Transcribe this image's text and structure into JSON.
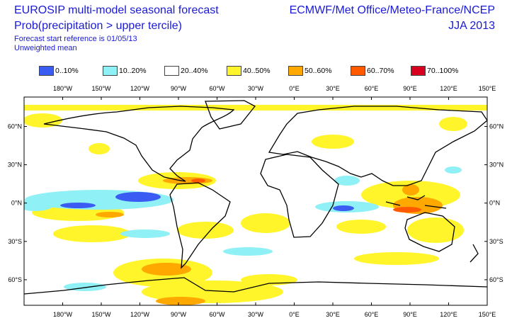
{
  "header": {
    "title": "EUROSIP multi-model seasonal forecast",
    "subtitle": "Prob(precipitation > upper tercile)",
    "reference": "Forecast start reference is 01/05/13",
    "mean": "Unweighted mean",
    "source": "ECMWF/Met Office/Meteo-France/NCEP",
    "season": "JJA 2013"
  },
  "legend": [
    {
      "label": "0..10%",
      "color": "#3a5cf2"
    },
    {
      "label": "10..20%",
      "color": "#8ff0f5"
    },
    {
      "label": "20..40%",
      "color": "#ffffff"
    },
    {
      "label": "40..50%",
      "color": "#fff52a"
    },
    {
      "label": "50..60%",
      "color": "#ffa800"
    },
    {
      "label": "60..70%",
      "color": "#ff5a00"
    },
    {
      "label": "70..100%",
      "color": "#d8001e"
    }
  ],
  "map": {
    "projection": "equirectangular",
    "lon_ticks": [
      "180°W",
      "150°W",
      "120°W",
      "90°W",
      "60°W",
      "30°W",
      "0°E",
      "30°E",
      "60°E",
      "90°E",
      "120°E",
      "150°E"
    ],
    "lat_ticks": [
      "60°N",
      "30°N",
      "0°N",
      "30°S",
      "60°S"
    ]
  }
}
